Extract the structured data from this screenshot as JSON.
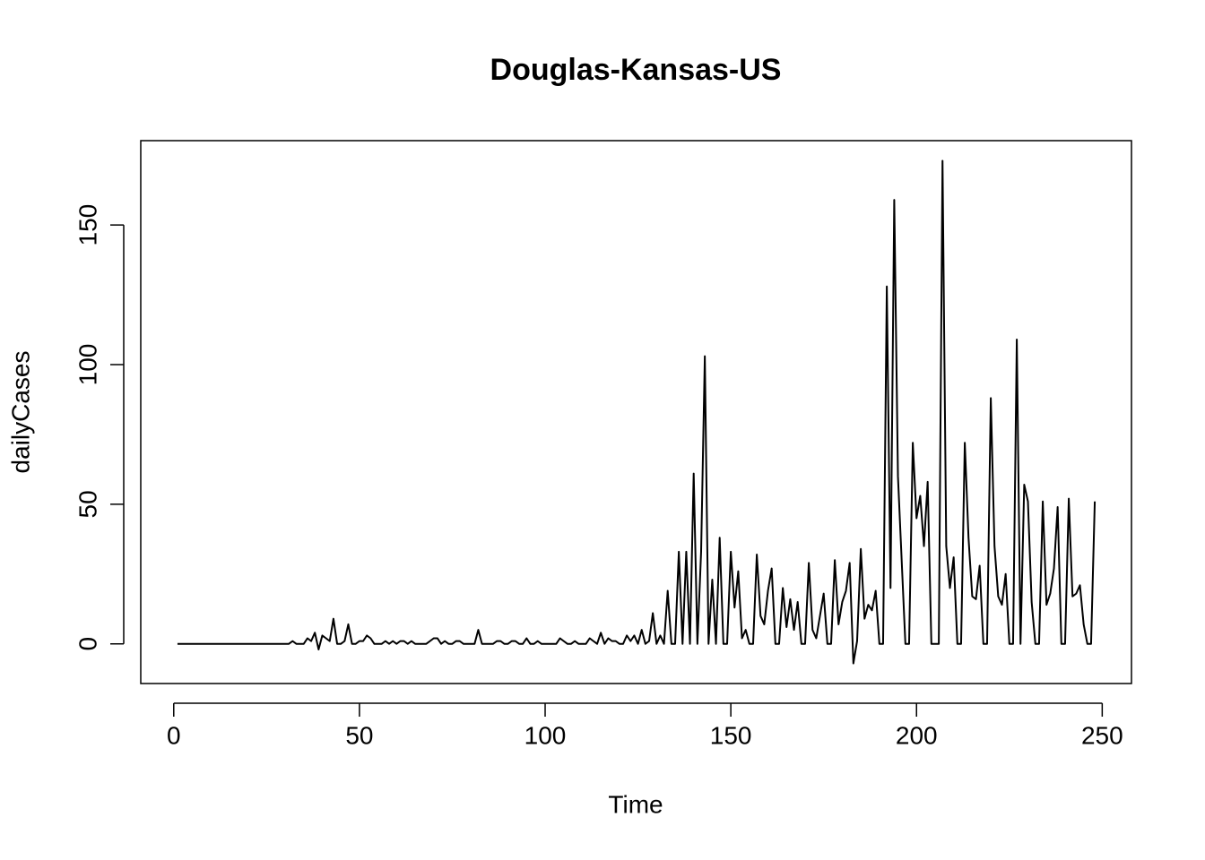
{
  "chart_data": {
    "type": "line",
    "title": "Douglas-Kansas-US",
    "x_label": "Time",
    "y_label": "dailyCases",
    "color": "#000000",
    "x": [
      1,
      2,
      3,
      4,
      5,
      6,
      7,
      8,
      9,
      10,
      11,
      12,
      13,
      14,
      15,
      16,
      17,
      18,
      19,
      20,
      21,
      22,
      23,
      24,
      25,
      26,
      27,
      28,
      29,
      30,
      31,
      32,
      33,
      34,
      35,
      36,
      37,
      38,
      39,
      40,
      41,
      42,
      43,
      44,
      45,
      46,
      47,
      48,
      49,
      50,
      51,
      52,
      53,
      54,
      55,
      56,
      57,
      58,
      59,
      60,
      61,
      62,
      63,
      64,
      65,
      66,
      67,
      68,
      69,
      70,
      71,
      72,
      73,
      74,
      75,
      76,
      77,
      78,
      79,
      80,
      81,
      82,
      83,
      84,
      85,
      86,
      87,
      88,
      89,
      90,
      91,
      92,
      93,
      94,
      95,
      96,
      97,
      98,
      99,
      100,
      101,
      102,
      103,
      104,
      105,
      106,
      107,
      108,
      109,
      110,
      111,
      112,
      113,
      114,
      115,
      116,
      117,
      118,
      119,
      120,
      121,
      122,
      123,
      124,
      125,
      126,
      127,
      128,
      129,
      130,
      131,
      132,
      133,
      134,
      135,
      136,
      137,
      138,
      139,
      140,
      141,
      142,
      143,
      144,
      145,
      146,
      147,
      148,
      149,
      150,
      151,
      152,
      153,
      154,
      155,
      156,
      157,
      158,
      159,
      160,
      161,
      162,
      163,
      164,
      165,
      166,
      167,
      168,
      169,
      170,
      171,
      172,
      173,
      174,
      175,
      176,
      177,
      178,
      179,
      180,
      181,
      182,
      183,
      184,
      185,
      186,
      187,
      188,
      189,
      190,
      191,
      192,
      193,
      194,
      195,
      196,
      197,
      198,
      199,
      200,
      201,
      202,
      203,
      204,
      205,
      206,
      207,
      208,
      209,
      210,
      211,
      212,
      213,
      214,
      215,
      216,
      217,
      218,
      219,
      220,
      221,
      222,
      223,
      224,
      225,
      226,
      227,
      228,
      229,
      230,
      231,
      232,
      233,
      234,
      235,
      236,
      237,
      238,
      239,
      240,
      241,
      242,
      243,
      244,
      245,
      246,
      247,
      248
    ],
    "values": [
      0,
      0,
      0,
      0,
      0,
      0,
      0,
      0,
      0,
      0,
      0,
      0,
      0,
      0,
      0,
      0,
      0,
      0,
      0,
      0,
      0,
      0,
      0,
      0,
      0,
      0,
      0,
      0,
      0,
      0,
      0,
      1,
      0,
      0,
      0,
      2,
      1,
      4,
      -2,
      3,
      2,
      1,
      9,
      0,
      0,
      1,
      7,
      0,
      0,
      1,
      1,
      3,
      2,
      0,
      0,
      0,
      1,
      0,
      1,
      0,
      1,
      1,
      0,
      1,
      0,
      0,
      0,
      0,
      1,
      2,
      2,
      0,
      1,
      0,
      0,
      1,
      1,
      0,
      0,
      0,
      0,
      5,
      0,
      0,
      0,
      0,
      1,
      1,
      0,
      0,
      1,
      1,
      0,
      0,
      2,
      0,
      0,
      1,
      0,
      0,
      0,
      0,
      0,
      2,
      1,
      0,
      0,
      1,
      0,
      0,
      0,
      2,
      1,
      0,
      4,
      0,
      2,
      1,
      1,
      0,
      0,
      3,
      1,
      3,
      0,
      5,
      0,
      1,
      11,
      0,
      3,
      0,
      19,
      0,
      0,
      33,
      0,
      33,
      0,
      61,
      0,
      33,
      103,
      0,
      23,
      0,
      38,
      0,
      0,
      33,
      13,
      26,
      2,
      5,
      0,
      0,
      32,
      10,
      7,
      19,
      27,
      0,
      0,
      20,
      6,
      16,
      5,
      15,
      0,
      0,
      29,
      5,
      2,
      10,
      18,
      0,
      0,
      30,
      7,
      15,
      19,
      29,
      -7,
      1,
      34,
      9,
      14,
      12,
      19,
      0,
      0,
      128,
      20,
      159,
      60,
      30,
      0,
      0,
      72,
      45,
      53,
      35,
      58,
      0,
      0,
      0,
      173,
      35,
      20,
      31,
      0,
      0,
      72,
      38,
      17,
      16,
      28,
      0,
      0,
      88,
      35,
      17,
      14,
      25,
      0,
      0,
      109,
      0,
      57,
      51,
      15,
      0,
      0,
      51,
      14,
      18,
      27,
      49,
      0,
      0,
      52,
      17,
      18,
      21,
      7,
      0,
      0,
      51
    ],
    "xlim": [
      -8.88,
      257.88
    ],
    "ylim": [
      -14.2,
      180.2
    ],
    "xticks": [
      0,
      50,
      100,
      150,
      200,
      250
    ],
    "yticks": [
      0,
      50,
      100,
      150
    ]
  }
}
